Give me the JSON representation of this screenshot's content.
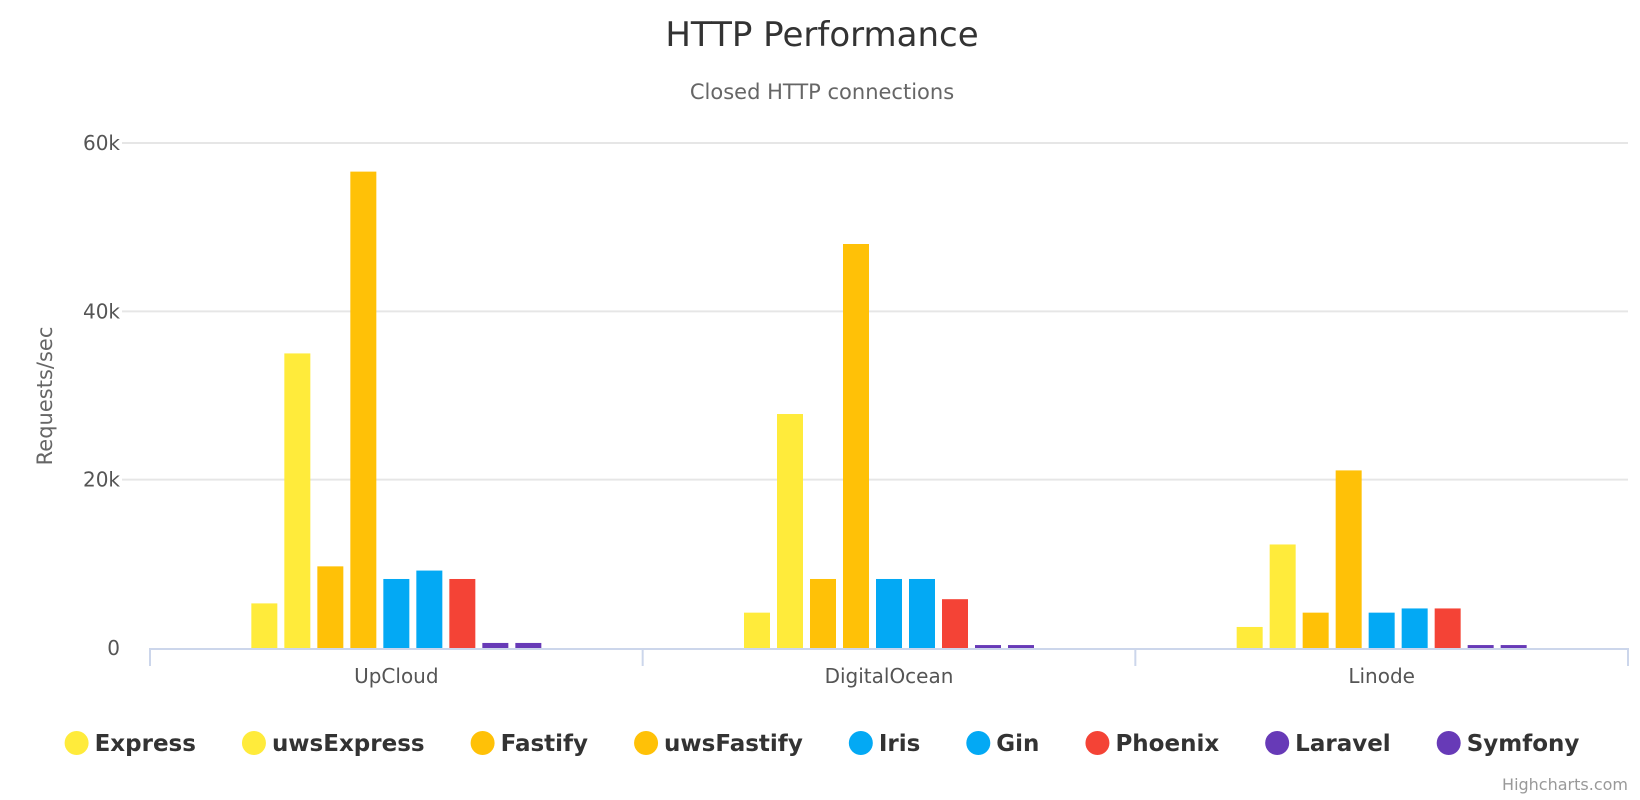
{
  "chart_data": {
    "type": "bar",
    "title": "HTTP Performance",
    "subtitle": "Closed HTTP connections",
    "ylabel": "Requests/sec",
    "xlabel": "",
    "ylim": [
      0,
      60000
    ],
    "yticks": [
      0,
      20000,
      40000,
      60000
    ],
    "ytick_labels": [
      "0",
      "20k",
      "40k",
      "60k"
    ],
    "categories": [
      "UpCloud",
      "DigitalOcean",
      "Linode"
    ],
    "grid": true,
    "legend": "bottom",
    "series": [
      {
        "name": "Express",
        "color": "#ffeb3b",
        "values": [
          5300,
          4200,
          2500
        ]
      },
      {
        "name": "uwsExpress",
        "color": "#ffeb3b",
        "values": [
          35000,
          27800,
          12300
        ]
      },
      {
        "name": "Fastify",
        "color": "#ffc107",
        "values": [
          9700,
          8200,
          4200
        ]
      },
      {
        "name": "uwsFastify",
        "color": "#ffc107",
        "values": [
          56600,
          48000,
          21100
        ]
      },
      {
        "name": "Iris",
        "color": "#03a9f4",
        "values": [
          8200,
          8200,
          4200
        ]
      },
      {
        "name": "Gin",
        "color": "#03a9f4",
        "values": [
          9200,
          8200,
          4700
        ]
      },
      {
        "name": "Phoenix",
        "color": "#f44336",
        "values": [
          8200,
          5800,
          4700
        ]
      },
      {
        "name": "Laravel",
        "color": "#673ab7",
        "values": [
          600,
          350,
          350
        ]
      },
      {
        "name": "Symfony",
        "color": "#673ab7",
        "values": [
          600,
          350,
          350
        ]
      }
    ]
  },
  "credits": "Highcharts.com"
}
